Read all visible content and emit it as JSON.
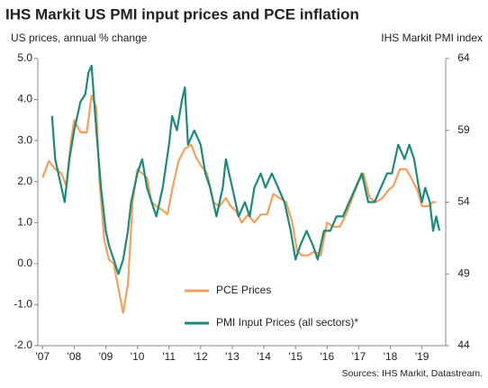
{
  "chart_data": {
    "type": "line",
    "title": "IHS Markit US PMI input prices and PCE inflation",
    "y_label": "US prices, annual % change",
    "y2_label": "IHS Markit  PMI index",
    "source": "Sources: IHS Markit, Datastream.",
    "xlim": [
      2006.85,
      2019.75
    ],
    "xticks": [
      {
        "value": 2007,
        "label": "'07"
      },
      {
        "value": 2008,
        "label": "'08"
      },
      {
        "value": 2009,
        "label": "'09"
      },
      {
        "value": 2010,
        "label": "'10"
      },
      {
        "value": 2011,
        "label": "'11"
      },
      {
        "value": 2012,
        "label": "'12"
      },
      {
        "value": 2013,
        "label": "'13"
      },
      {
        "value": 2014,
        "label": "'14"
      },
      {
        "value": 2015,
        "label": "'15"
      },
      {
        "value": 2016,
        "label": "'16"
      },
      {
        "value": 2017,
        "label": "'17"
      },
      {
        "value": 2018,
        "label": "'18"
      },
      {
        "value": 2019,
        "label": "'19"
      }
    ],
    "ylim": [
      -2,
      5
    ],
    "yticks": [
      {
        "value": -2,
        "label": "-2.0"
      },
      {
        "value": -1,
        "label": "-1.0"
      },
      {
        "value": 0,
        "label": "0.0"
      },
      {
        "value": 1,
        "label": "1.0"
      },
      {
        "value": 2,
        "label": "2.0"
      },
      {
        "value": 3,
        "label": "3.0"
      },
      {
        "value": 4,
        "label": "4.0"
      },
      {
        "value": 5,
        "label": "5.0"
      }
    ],
    "y2lim": [
      44,
      64
    ],
    "y2ticks": [
      44,
      49,
      54,
      59,
      64
    ],
    "grid": false,
    "legend": "bottom",
    "series": [
      {
        "name": "PCE Prices",
        "color": "#f4a05a",
        "x": [
          2007.0,
          2007.2,
          2007.4,
          2007.6,
          2007.75,
          2007.9,
          2008.0,
          2008.2,
          2008.4,
          2008.55,
          2008.7,
          2008.8,
          2008.95,
          2009.1,
          2009.25,
          2009.4,
          2009.55,
          2009.7,
          2009.85,
          2010.0,
          2010.15,
          2010.3,
          2010.45,
          2010.6,
          2010.8,
          2010.95,
          2011.1,
          2011.3,
          2011.5,
          2011.7,
          2011.85,
          2012.0,
          2012.2,
          2012.4,
          2012.6,
          2012.8,
          2012.95,
          2013.1,
          2013.3,
          2013.5,
          2013.7,
          2013.9,
          2014.1,
          2014.3,
          2014.5,
          2014.7,
          2014.9,
          2015.05,
          2015.2,
          2015.4,
          2015.6,
          2015.8,
          2016.0,
          2016.2,
          2016.4,
          2016.6,
          2016.8,
          2017.0,
          2017.15,
          2017.35,
          2017.55,
          2017.75,
          2017.95,
          2018.1,
          2018.3,
          2018.5,
          2018.65,
          2018.85,
          2019.0,
          2019.2,
          2019.35,
          2019.45
        ],
        "values": [
          2.1,
          2.5,
          2.3,
          2.2,
          1.9,
          3.0,
          3.5,
          3.2,
          3.2,
          4.1,
          3.8,
          2.0,
          0.6,
          0.1,
          0.0,
          -0.6,
          -1.2,
          -0.5,
          1.5,
          2.3,
          2.2,
          2.1,
          1.5,
          1.4,
          1.3,
          1.2,
          1.8,
          2.5,
          2.8,
          2.9,
          2.6,
          2.4,
          2.2,
          1.5,
          1.4,
          1.6,
          1.4,
          1.3,
          1.0,
          1.2,
          1.0,
          1.2,
          1.2,
          1.7,
          1.6,
          1.5,
          1.0,
          0.3,
          0.2,
          0.2,
          0.3,
          0.2,
          1.0,
          0.9,
          0.9,
          1.2,
          1.6,
          2.0,
          2.2,
          1.6,
          1.5,
          1.6,
          1.8,
          1.9,
          2.3,
          2.3,
          2.1,
          1.8,
          1.4,
          1.4,
          1.5,
          1.5
        ]
      },
      {
        "name": "PMI Input Prices (all sectors)*",
        "color": "#1a8a7e",
        "axis": "y2",
        "x": [
          2007.3,
          2007.4,
          2007.6,
          2007.7,
          2007.85,
          2008.0,
          2008.2,
          2008.35,
          2008.45,
          2008.55,
          2008.7,
          2008.85,
          2009.0,
          2009.1,
          2009.25,
          2009.4,
          2009.55,
          2009.7,
          2009.8,
          2010.0,
          2010.15,
          2010.3,
          2010.45,
          2010.6,
          2010.8,
          2011.0,
          2011.1,
          2011.25,
          2011.4,
          2011.5,
          2011.6,
          2011.8,
          2012.0,
          2012.15,
          2012.3,
          2012.5,
          2012.7,
          2012.8,
          2013.0,
          2013.2,
          2013.4,
          2013.55,
          2013.7,
          2013.9,
          2014.05,
          2014.25,
          2014.45,
          2014.65,
          2014.85,
          2015.0,
          2015.15,
          2015.35,
          2015.55,
          2015.7,
          2015.9,
          2016.1,
          2016.3,
          2016.5,
          2016.7,
          2016.9,
          2017.1,
          2017.3,
          2017.5,
          2017.7,
          2017.9,
          2018.05,
          2018.25,
          2018.45,
          2018.6,
          2018.75,
          2018.9,
          2019.0,
          2019.1,
          2019.25,
          2019.35,
          2019.45,
          2019.55
        ],
        "values": [
          60,
          57,
          55,
          54,
          57,
          59,
          61,
          61.5,
          63,
          63.5,
          59,
          55,
          52,
          51,
          50,
          49,
          50,
          52,
          54,
          56,
          57,
          55,
          54,
          53,
          55,
          58,
          60,
          59,
          61,
          62,
          58,
          59,
          58,
          56,
          55,
          53,
          55,
          57,
          55,
          53,
          54,
          53,
          55,
          56,
          55,
          56,
          55,
          54,
          52,
          50,
          51,
          52,
          51,
          50,
          52,
          52,
          53,
          53,
          54,
          55,
          56,
          54,
          54,
          55,
          56,
          56,
          58,
          57,
          58,
          57,
          55,
          54,
          55,
          54,
          52,
          53,
          52
        ]
      }
    ]
  }
}
